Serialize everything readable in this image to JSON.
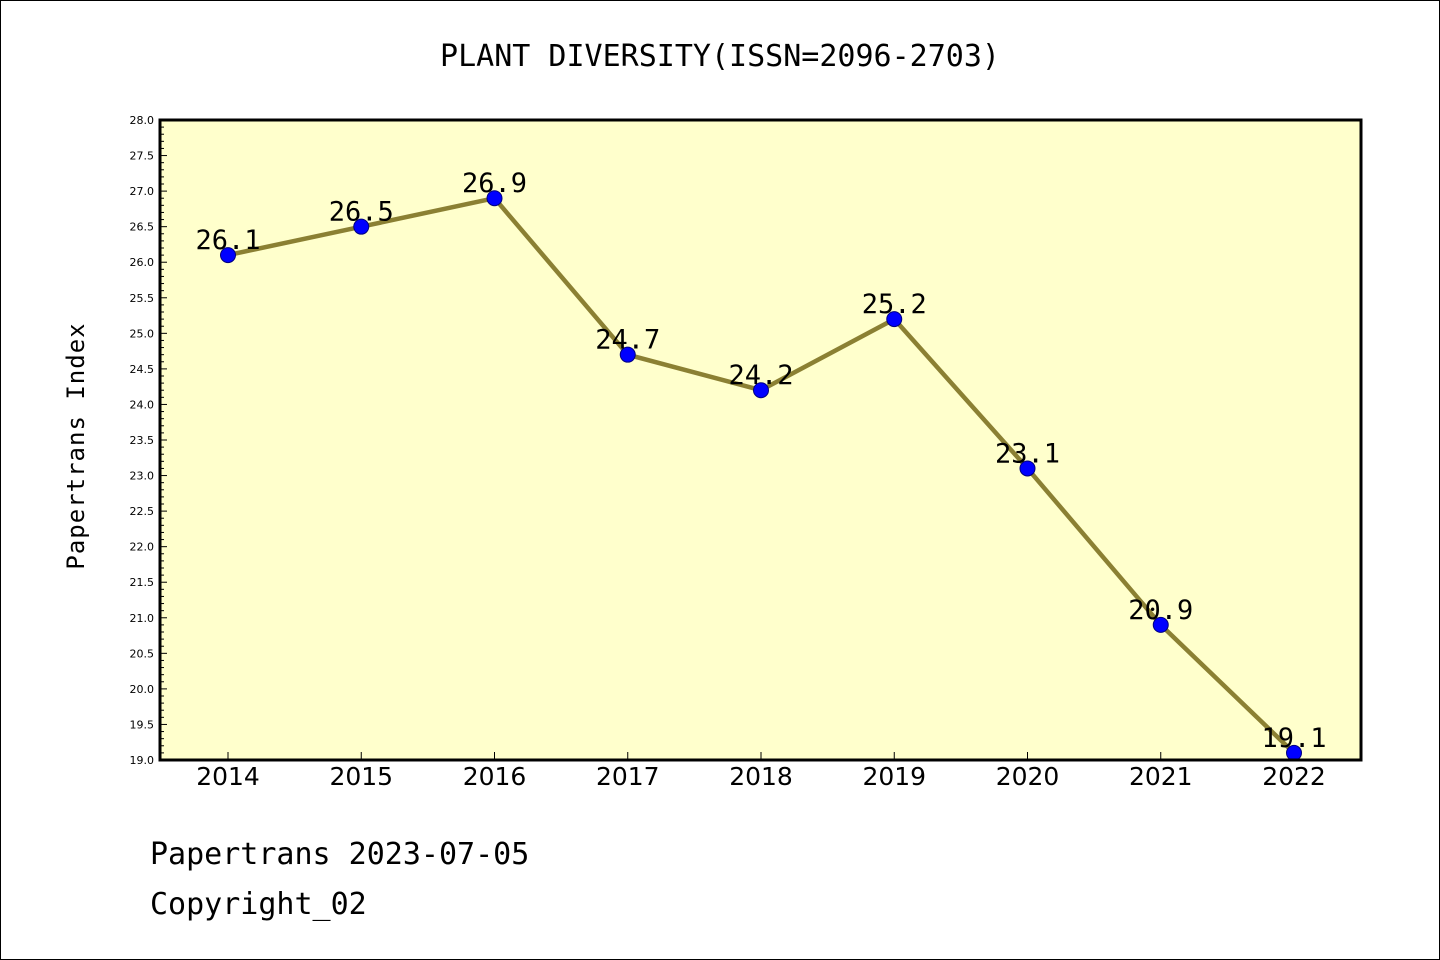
{
  "chart_data": {
    "type": "line",
    "title": "PLANT DIVERSITY(ISSN=2096-2703)",
    "xlabel": "",
    "ylabel": "Papertrans Index",
    "categories": [
      "2014",
      "2015",
      "2016",
      "2017",
      "2018",
      "2019",
      "2020",
      "2021",
      "2022"
    ],
    "series": [
      {
        "values": [
          26.1,
          26.5,
          26.9,
          24.7,
          24.2,
          25.2,
          23.1,
          20.9,
          19.1
        ]
      }
    ],
    "data_labels": [
      "26.1",
      "26.5",
      "26.9",
      "24.7",
      "24.2",
      "25.2",
      "23.1",
      "20.9",
      "19.1"
    ],
    "ylim": [
      19.0,
      28.0
    ],
    "yticks": [
      "19.0",
      "19.5",
      "20.0",
      "20.5",
      "21.0",
      "21.5",
      "22.0",
      "22.5",
      "23.0",
      "23.5",
      "24.0",
      "24.5",
      "25.0",
      "25.5",
      "26.0",
      "26.5",
      "27.0",
      "27.5",
      "28.0"
    ],
    "grid": false,
    "legend": "none",
    "colors": {
      "plot_background": "#ffffcc",
      "line": "#8b8033",
      "marker": "#0000ff",
      "frame": "#000000"
    }
  },
  "footer": {
    "line1": "Papertrans 2023-07-05",
    "line2": "Copyright_02"
  }
}
